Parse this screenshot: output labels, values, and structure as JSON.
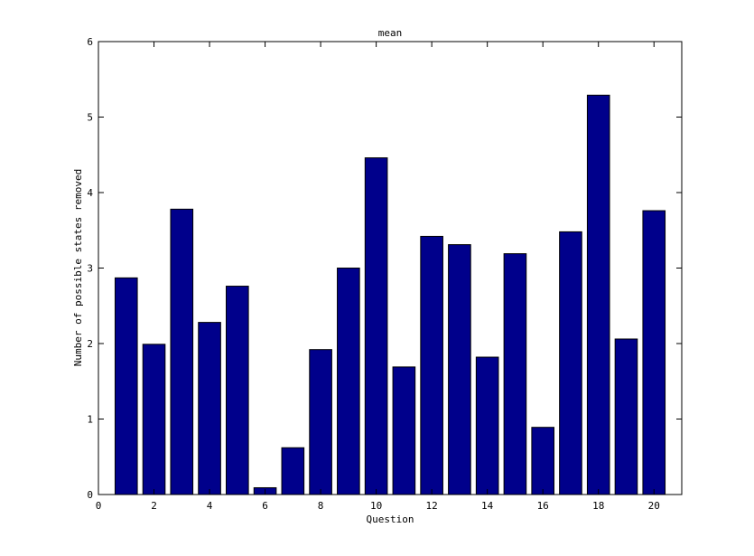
{
  "chart_data": {
    "type": "bar",
    "title": "mean",
    "xlabel": "Question",
    "ylabel": "Number of possible states removed",
    "x": [
      1,
      2,
      3,
      4,
      5,
      6,
      7,
      8,
      9,
      10,
      11,
      12,
      13,
      14,
      15,
      16,
      17,
      18,
      19,
      20
    ],
    "values": [
      2.87,
      1.99,
      3.78,
      2.28,
      2.76,
      0.09,
      0.62,
      1.92,
      3.0,
      4.46,
      1.69,
      3.42,
      3.31,
      1.82,
      3.19,
      0.89,
      3.48,
      5.29,
      2.06,
      3.76
    ],
    "xlim": [
      0,
      21
    ],
    "ylim": [
      0,
      6
    ],
    "xticks": [
      "0",
      "2",
      "4",
      "6",
      "8",
      "10",
      "12",
      "14",
      "16",
      "18",
      "20"
    ],
    "yticks": [
      "0",
      "1",
      "2",
      "3",
      "4",
      "5",
      "6"
    ],
    "bar_color": "#00008B",
    "grid": false
  }
}
